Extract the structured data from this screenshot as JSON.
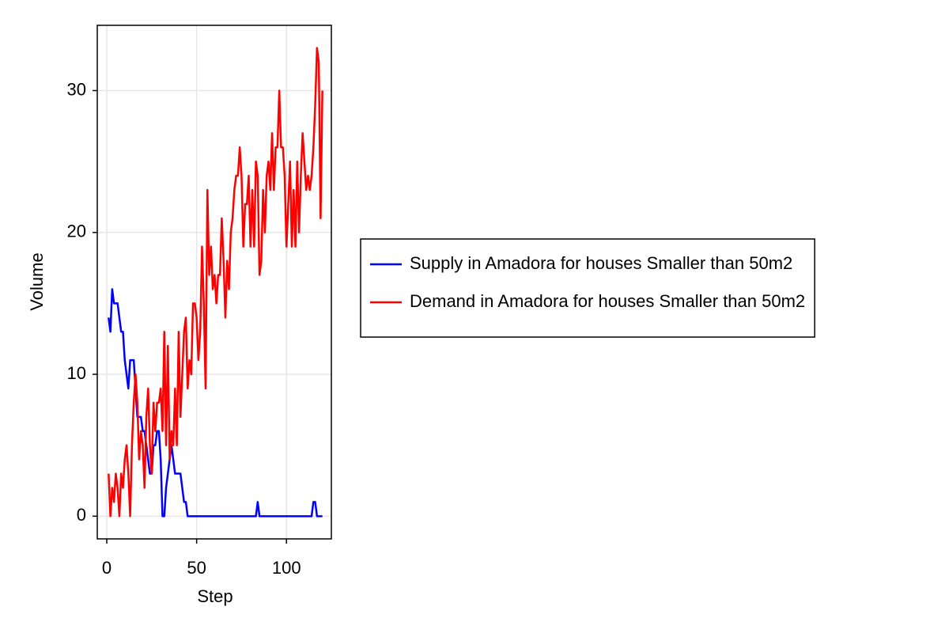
{
  "chart_data": {
    "type": "line",
    "x_label": "Step",
    "y_label": "Volume",
    "x": [
      1,
      2,
      3,
      4,
      5,
      6,
      7,
      8,
      9,
      10,
      11,
      12,
      13,
      14,
      15,
      16,
      17,
      18,
      19,
      20,
      21,
      22,
      23,
      24,
      25,
      26,
      27,
      28,
      29,
      30,
      31,
      32,
      33,
      34,
      35,
      36,
      37,
      38,
      39,
      40,
      41,
      42,
      43,
      44,
      45,
      46,
      47,
      48,
      49,
      50,
      51,
      52,
      53,
      54,
      55,
      56,
      57,
      58,
      59,
      60,
      61,
      62,
      63,
      64,
      65,
      66,
      67,
      68,
      69,
      70,
      71,
      72,
      73,
      74,
      75,
      76,
      77,
      78,
      79,
      80,
      81,
      82,
      83,
      84,
      85,
      86,
      87,
      88,
      89,
      90,
      91,
      92,
      93,
      94,
      95,
      96,
      97,
      98,
      99,
      100,
      101,
      102,
      103,
      104,
      105,
      106,
      107,
      108,
      109,
      110,
      111,
      112,
      113,
      114,
      115,
      116,
      117,
      118,
      119,
      120
    ],
    "series": [
      {
        "name": "Supply in Amadora for houses Smaller than 50m2",
        "color": "#0000ff",
        "values": [
          14,
          13,
          16,
          15,
          15,
          15,
          14,
          13,
          13,
          11,
          10,
          9,
          11,
          11,
          11,
          9,
          7,
          7,
          7,
          6,
          6,
          5,
          4,
          3,
          3,
          5,
          5,
          6,
          6,
          4,
          0,
          0,
          2,
          3,
          4,
          5,
          4,
          3,
          3,
          3,
          3,
          2,
          1,
          1,
          0,
          0,
          0,
          0,
          0,
          0,
          0,
          0,
          0,
          0,
          0,
          0,
          0,
          0,
          0,
          0,
          0,
          0,
          0,
          0,
          0,
          0,
          0,
          0,
          0,
          0,
          0,
          0,
          0,
          0,
          0,
          0,
          0,
          0,
          0,
          0,
          0,
          0,
          0,
          1,
          0,
          0,
          0,
          0,
          0,
          0,
          0,
          0,
          0,
          0,
          0,
          0,
          0,
          0,
          0,
          0,
          0,
          0,
          0,
          0,
          0,
          0,
          0,
          0,
          0,
          0,
          0,
          0,
          0,
          0,
          1,
          1,
          0,
          0,
          0,
          0
        ]
      },
      {
        "name": "Demand in Amadora for houses Smaller than 50m2",
        "color": "#ff0000",
        "values": [
          3,
          0,
          2,
          1,
          3,
          2,
          0,
          3,
          2,
          4,
          5,
          3,
          0,
          5,
          8,
          10,
          8,
          4,
          6,
          5,
          2,
          7,
          9,
          5,
          3,
          8,
          6,
          8,
          8,
          9,
          6,
          13,
          5,
          12,
          4,
          6,
          5,
          9,
          5,
          13,
          7,
          10,
          13,
          14,
          9,
          11,
          10,
          15,
          15,
          14,
          11,
          13,
          19,
          15,
          9,
          23,
          17,
          19,
          16,
          17,
          15,
          17,
          17,
          21,
          18,
          14,
          18,
          16,
          20,
          21,
          23,
          24,
          24,
          26,
          24,
          19,
          22,
          22,
          24,
          19,
          23,
          19,
          25,
          24,
          17,
          18,
          23,
          20,
          24,
          25,
          23,
          27,
          23,
          26,
          26,
          30,
          26,
          26,
          24,
          19,
          22,
          25,
          19,
          23,
          19,
          25,
          20,
          24,
          27,
          25,
          23,
          24,
          23,
          24,
          26,
          29,
          33,
          32,
          21,
          30
        ]
      }
    ],
    "xlim": [
      -5.3,
      125
    ],
    "ylim": [
      -1.6,
      34.6
    ],
    "xticks": [
      0,
      50,
      100
    ],
    "yticks": [
      0,
      10,
      20,
      30
    ],
    "grid": true,
    "legend": "right"
  }
}
